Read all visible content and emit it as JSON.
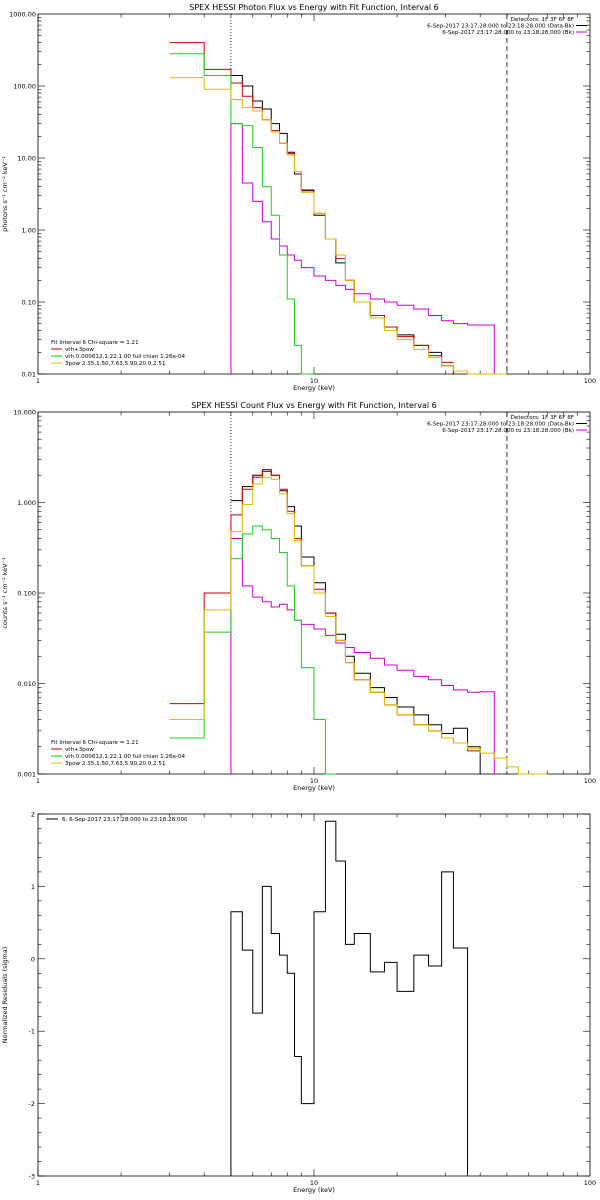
{
  "chart_data": [
    {
      "type": "line",
      "title": "SPEX HESSI Photon Flux vs Energy with Fit Function, Interval 6",
      "xlabel": "Energy (keV)",
      "ylabel": "photons s⁻¹ cm⁻² keV⁻¹",
      "xscale": "log",
      "yscale": "log",
      "xlim": [
        1,
        100
      ],
      "ylim": [
        0.01,
        1000
      ],
      "x_ticks": [
        "1",
        "10",
        "100"
      ],
      "y_ticks": [
        "0.01",
        "0.10",
        "1.00",
        "10.00",
        "100.00",
        "1000.00"
      ],
      "legend_top": [
        {
          "text": "Detectors: 1F 3F 6F 8F",
          "color": "#000000"
        },
        {
          "text": "6-Sep-2017 23:17:28.000 to 23:18:28.000 (Data-Bk)",
          "color": "#000000"
        },
        {
          "text": "6-Sep-2017 23:17:28.000 to 23:18:28.000 (Bk)",
          "color": "#cc00cc"
        }
      ],
      "legend_bottom": [
        {
          "text": "Fit Interval 6   Chi-square = 1.21",
          "color": null
        },
        {
          "text": "vth+3pow",
          "color": "#cc0000"
        },
        {
          "text": "vth 0.000612,1.22,1.00  full chian 1.26e-04",
          "color": "#00cc00"
        },
        {
          "text": "3pow 2.35,1.50,7.63,5.90,20.0,2.51",
          "color": "#ddbb00"
        }
      ],
      "vlines": [
        {
          "x": 5,
          "style": "dotted"
        },
        {
          "x": 50,
          "style": "dashed"
        }
      ],
      "edges": [
        3,
        4,
        5,
        5.5,
        6,
        6.5,
        7,
        7.5,
        8,
        8.5,
        9,
        10,
        11,
        12,
        13,
        14,
        16,
        18,
        20,
        23,
        26,
        29,
        32,
        36,
        40,
        45,
        50,
        55,
        60,
        70
      ],
      "series": [
        {
          "name": "Data-Bk",
          "color": "#000000",
          "from": 2,
          "values": [
            140,
            100,
            62,
            48,
            30,
            22,
            12,
            6.0,
            3.6,
            1.6,
            0.75,
            0.35,
            0.2,
            0.1,
            0.065,
            0.045,
            0.035,
            0.025,
            0.02,
            0.013
          ]
        },
        {
          "name": "Bk",
          "color": "#cc00cc",
          "from": 2,
          "values": [
            30,
            4.5,
            2.5,
            1.3,
            0.75,
            0.6,
            0.45,
            0.38,
            0.3,
            0.23,
            0.2,
            0.17,
            0.15,
            0.13,
            0.11,
            0.1,
            0.09,
            0.08,
            0.065,
            0.055,
            0.05,
            0.048,
            0.048
          ]
        },
        {
          "name": "vth+3pow",
          "color": "#cc0000",
          "from": 0,
          "values": [
            400,
            170,
            110,
            72,
            50,
            34,
            24,
            16,
            11.5,
            6.5,
            3.5,
            1.7,
            0.75,
            0.4,
            0.2,
            0.1,
            0.065,
            0.045,
            0.033,
            0.025,
            0.018,
            0.0145
          ]
        },
        {
          "name": "vth",
          "color": "#22cc22",
          "from": 0,
          "values": [
            280,
            140,
            30,
            28,
            14,
            4.0,
            1.6,
            0.45,
            0.11,
            0.025,
            0.009
          ]
        },
        {
          "name": "3pow",
          "color": "#ddbb00",
          "from": 0,
          "values": [
            130,
            90,
            65,
            50,
            45,
            34,
            23,
            16,
            11,
            6.5,
            3.3,
            1.7,
            0.75,
            0.45,
            0.2,
            0.1,
            0.06,
            0.04,
            0.03,
            0.022,
            0.017,
            0.013,
            0.011,
            0.01,
            0.009,
            0.009
          ]
        }
      ]
    },
    {
      "type": "line",
      "title": "SPEX HESSI Count Flux vs Energy with Fit Function, Interval 6",
      "xlabel": "Energy (keV)",
      "ylabel": "counts s⁻¹ cm⁻² keV⁻¹",
      "xscale": "log",
      "yscale": "log",
      "xlim": [
        1,
        100
      ],
      "ylim": [
        0.001,
        10
      ],
      "x_ticks": [
        "1",
        "10",
        "100"
      ],
      "y_ticks": [
        "0.001",
        "0.010",
        "0.100",
        "1.000",
        "10.000"
      ],
      "legend_top": [
        {
          "text": "Detectors: 1F 3F 6F 8F",
          "color": "#000000"
        },
        {
          "text": "6-Sep-2017 23:17:28.000 to 23:18:28.000 (Data-Bk)",
          "color": "#000000"
        },
        {
          "text": "6-Sep-2017 23:17:28.000 to 23:18:28.000 (Bk)",
          "color": "#cc00cc"
        }
      ],
      "legend_bottom": [
        {
          "text": "Fit Interval 6   Chi-square = 1.21",
          "color": null
        },
        {
          "text": "vth+3pow",
          "color": "#cc0000"
        },
        {
          "text": "vth 0.000612,1.22,1.00  full chian 1.26e-04",
          "color": "#00cc00"
        },
        {
          "text": "3pow 2.35,1.50,7.63,5.90,20.0,2.51",
          "color": "#ddbb00"
        }
      ],
      "vlines": [
        {
          "x": 5,
          "style": "dotted"
        },
        {
          "x": 50,
          "style": "dashed"
        }
      ],
      "edges": [
        3,
        4,
        5,
        5.5,
        6,
        6.5,
        7,
        7.5,
        8,
        8.5,
        9,
        10,
        11,
        12,
        13,
        14,
        16,
        18,
        20,
        23,
        26,
        29,
        32,
        36,
        40,
        45,
        50,
        55,
        60,
        70
      ],
      "series": [
        {
          "name": "Data-Bk",
          "color": "#000000",
          "from": 2,
          "values": [
            1.05,
            1.5,
            2.0,
            2.3,
            2.0,
            1.35,
            0.9,
            0.55,
            0.25,
            0.13,
            0.06,
            0.035,
            0.02,
            0.013,
            0.009,
            0.007,
            0.0055,
            0.0045,
            0.0035,
            0.0028,
            0.0032,
            0.002
          ]
        },
        {
          "name": "Bk",
          "color": "#cc00cc",
          "from": 2,
          "values": [
            0.4,
            0.12,
            0.09,
            0.08,
            0.07,
            0.075,
            0.065,
            0.05,
            0.045,
            0.04,
            0.034,
            0.028,
            0.025,
            0.022,
            0.019,
            0.016,
            0.014,
            0.012,
            0.011,
            0.0095,
            0.0085,
            0.008,
            0.0081
          ]
        },
        {
          "name": "vth+3pow",
          "color": "#cc0000",
          "from": 0,
          "values": [
            0.006,
            0.1,
            0.73,
            1.4,
            1.9,
            2.2,
            2.0,
            1.4,
            0.8,
            0.4,
            0.2,
            0.11,
            0.06,
            0.03,
            0.017,
            0.011,
            0.008,
            0.0058,
            0.0045,
            0.0035,
            0.003,
            0.0025,
            0.0022,
            0.0018
          ]
        },
        {
          "name": "vth",
          "color": "#22cc22",
          "from": 0,
          "values": [
            0.0025,
            0.037,
            0.24,
            0.45,
            0.55,
            0.5,
            0.4,
            0.28,
            0.12,
            0.05,
            0.015,
            0.004,
            0.001
          ]
        },
        {
          "name": "3pow",
          "color": "#ddbb00",
          "from": 0,
          "values": [
            0.004,
            0.065,
            0.48,
            0.95,
            1.6,
            1.9,
            1.8,
            1.25,
            0.75,
            0.38,
            0.2,
            0.1,
            0.055,
            0.03,
            0.017,
            0.011,
            0.008,
            0.0058,
            0.0045,
            0.0035,
            0.003,
            0.0025,
            0.0022,
            0.0019,
            0.0017,
            0.0015,
            0.0012,
            0.001,
            0.001
          ]
        }
      ]
    },
    {
      "type": "line",
      "title": "",
      "xlabel": "Energy (keV)",
      "ylabel": "Normalized Residuals (sigma)",
      "xscale": "log",
      "yscale": "linear",
      "xlim": [
        1,
        100
      ],
      "ylim": [
        -3,
        2
      ],
      "x_ticks": [
        "1",
        "10",
        "100"
      ],
      "y_ticks": [
        "-3",
        "-2",
        "-1",
        "0",
        "1",
        "2"
      ],
      "legend_top": [
        {
          "text": "6.  6-Sep-2017 23:17:28.000 to 23:18:28.000",
          "color": "#000000"
        }
      ],
      "legend_bottom": [],
      "vlines": [],
      "edges": [
        5,
        5.5,
        6,
        6.5,
        7,
        7.5,
        8,
        8.5,
        9,
        10,
        11,
        12,
        13,
        14,
        16,
        18,
        20,
        23,
        26,
        29,
        32,
        36,
        40,
        45,
        50
      ],
      "series": [
        {
          "name": "residuals",
          "color": "#000000",
          "from": 0,
          "drop_to_bottom": true,
          "values": [
            0.65,
            0.12,
            -0.75,
            1.0,
            0.35,
            0.05,
            -0.2,
            -1.35,
            -2.0,
            0.65,
            1.9,
            1.35,
            0.2,
            0.35,
            -0.18,
            -0.05,
            -0.45,
            0.05,
            -0.1,
            1.2,
            0.15
          ]
        }
      ]
    }
  ]
}
